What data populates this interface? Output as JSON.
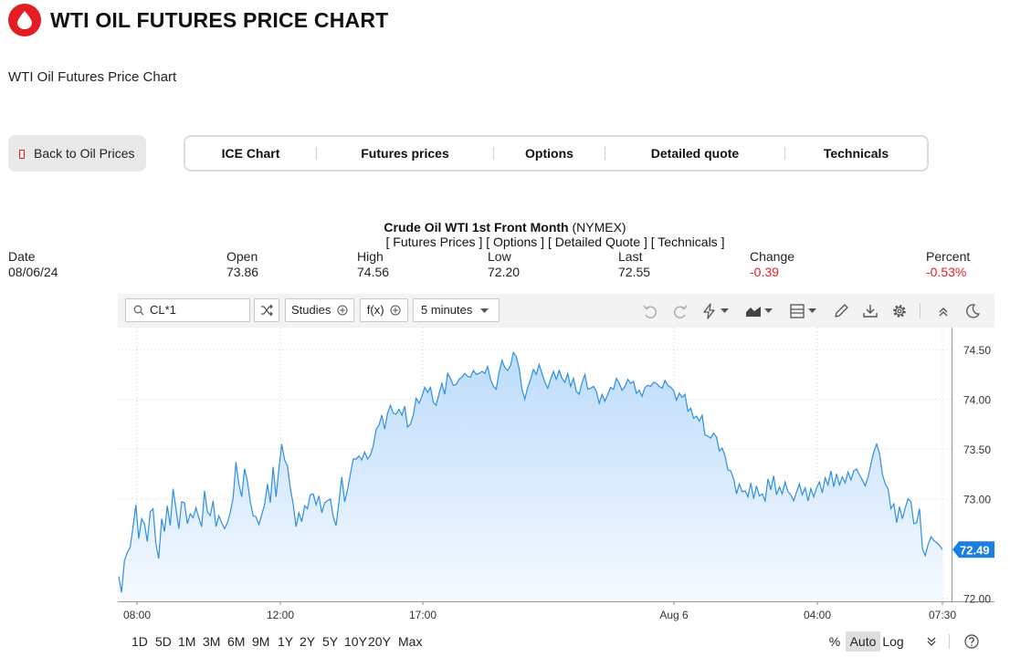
{
  "header": {
    "title": "WTI OIL FUTURES PRICE CHART",
    "subtitle": "WTI Oil Futures Price Chart",
    "brand_color": "#e31d24"
  },
  "back_button": {
    "label": "Back to Oil Prices"
  },
  "tabs": [
    {
      "label": "ICE Chart"
    },
    {
      "label": "Futures prices"
    },
    {
      "label": "Options"
    },
    {
      "label": "Detailed quote"
    },
    {
      "label": "Technicals"
    }
  ],
  "instrument": {
    "name": "Crude Oil WTI 1st Front Month",
    "exchange": "(NYMEX)",
    "links": [
      "[ Futures Prices ]",
      "[ Options ]",
      "[ Detailed Quote ]",
      "[ Technicals ]"
    ]
  },
  "quote": {
    "date_label": "Date",
    "date": "08/06/24",
    "open_label": "Open",
    "open": "73.86",
    "high_label": "High",
    "high": "74.56",
    "low_label": "Low",
    "low": "72.20",
    "last_label": "Last",
    "last": "72.55",
    "change_label": "Change",
    "change": "-0.39",
    "percent_label": "Percent",
    "percent": "-0.53%",
    "negative_color": "#e31d24"
  },
  "toolbar": {
    "symbol": "CL*1",
    "studies_label": "Studies",
    "fx_label": "f(x)",
    "interval_label": "5 minutes",
    "icons": [
      "search-icon",
      "shuffle-icon",
      "undo-icon",
      "redo-icon",
      "lightning-icon",
      "area-chart-icon",
      "layout-icon",
      "pencil-icon",
      "download-icon",
      "gear-icon",
      "collapse-icon",
      "moon-icon"
    ]
  },
  "chart_data": {
    "type": "area",
    "series": [
      {
        "color": "#2f8fe0"
      }
    ],
    "y_ticks": [
      "74.50",
      "74.00",
      "73.50",
      "73.00",
      "72.00"
    ],
    "y_tick_values": [
      74.5,
      74.0,
      73.5,
      73.0,
      72.0
    ],
    "ylim": [
      71.97,
      74.72
    ],
    "x_ticks": [
      "08:00",
      "12:00",
      "17:00",
      "Aug 6",
      "04:00",
      "07:30"
    ],
    "last_price": "72.49",
    "last_value": 72.49,
    "values": [
      72.22,
      72.06,
      72.38,
      72.46,
      72.51,
      72.72,
      72.94,
      72.6,
      72.8,
      72.75,
      72.57,
      72.87,
      72.9,
      72.55,
      72.4,
      72.8,
      72.67,
      72.93,
      72.73,
      73.1,
      72.91,
      72.7,
      72.97,
      72.96,
      72.75,
      72.85,
      72.81,
      72.91,
      72.81,
      72.72,
      73.08,
      72.87,
      72.83,
      72.98,
      72.72,
      72.83,
      72.76,
      72.7,
      72.76,
      72.86,
      73.01,
      73.37,
      73.15,
      73.02,
      73.3,
      73.18,
      72.97,
      72.83,
      72.82,
      72.74,
      72.84,
      72.94,
      73.15,
      72.96,
      73.32,
      73.02,
      73.3,
      73.55,
      73.39,
      73.33,
      73.11,
      72.95,
      72.72,
      72.86,
      72.77,
      72.93,
      72.9,
      73.04,
      73.05,
      72.94,
      73.03,
      72.86,
      72.96,
      72.98,
      73.0,
      72.82,
      72.73,
      72.97,
      73.22,
      72.97,
      73.09,
      73.25,
      73.4,
      73.4,
      73.43,
      73.39,
      73.47,
      73.4,
      73.44,
      73.53,
      73.7,
      73.74,
      73.84,
      73.7,
      73.86,
      73.94,
      73.86,
      73.85,
      73.9,
      73.84,
      73.93,
      73.72,
      73.75,
      73.84,
      74.01,
      73.96,
      74.03,
      74.12,
      74.07,
      74.12,
      73.97,
      73.94,
      74.06,
      74.16,
      74.05,
      74.26,
      74.21,
      74.14,
      74.15,
      74.2,
      74.22,
      74.26,
      74.23,
      74.22,
      74.29,
      74.25,
      74.26,
      74.28,
      74.26,
      74.33,
      74.2,
      74.13,
      74.1,
      74.27,
      74.39,
      74.32,
      74.29,
      74.34,
      74.47,
      74.43,
      74.31,
      74.1,
      74.0,
      74.12,
      74.2,
      74.3,
      74.25,
      74.35,
      74.26,
      74.17,
      74.11,
      74.2,
      74.28,
      74.2,
      74.29,
      74.21,
      74.17,
      74.26,
      74.13,
      74.21,
      74.08,
      74.05,
      74.17,
      74.25,
      74.1,
      74.11,
      74.13,
      74.08,
      73.96,
      74.05,
      73.98,
      74.05,
      74.12,
      74.1,
      74.21,
      74.16,
      74.09,
      74.13,
      74.2,
      74.16,
      74.18,
      74.06,
      74.09,
      74.03,
      74.12,
      74.14,
      74.13,
      74.17,
      74.16,
      74.13,
      74.11,
      74.19,
      74.14,
      74.12,
      74.09,
      73.99,
      74.06,
      74.02,
      74.05,
      73.88,
      73.91,
      73.81,
      73.83,
      73.78,
      73.84,
      73.64,
      73.63,
      73.61,
      73.66,
      73.62,
      73.48,
      73.51,
      73.43,
      73.29,
      73.28,
      73.2,
      73.05,
      73.15,
      73.07,
      73.08,
      73.02,
      73.16,
      73.0,
      73.13,
      73.03,
      73.05,
      72.98,
      73.2,
      73.09,
      73.23,
      73.04,
      73.12,
      73.05,
      73.17,
      73.07,
      73.04,
      72.98,
      73.07,
      73.15,
      73.04,
      73.11,
      72.98,
      73.1,
      73.02,
      73.11,
      73.17,
      73.06,
      73.21,
      73.14,
      73.28,
      73.12,
      73.25,
      73.14,
      73.22,
      73.16,
      73.27,
      73.19,
      73.28,
      73.3,
      73.24,
      73.19,
      73.13,
      73.22,
      73.35,
      73.47,
      73.55,
      73.46,
      73.25,
      73.15,
      73.1,
      72.9,
      72.95,
      72.76,
      72.92,
      72.8,
      72.91,
      73.0,
      72.97,
      72.75,
      72.76,
      72.9,
      72.5,
      72.43,
      72.54,
      72.62,
      72.58,
      72.56,
      72.53,
      72.49
    ]
  },
  "ranges": {
    "buttons": [
      "1D",
      "5D",
      "1M",
      "3M",
      "6M",
      "9M",
      "1Y",
      "2Y",
      "5Y",
      "10Y",
      "20Y",
      "Max"
    ],
    "percent_label": "%",
    "auto_label": "Auto",
    "log_label": "Log"
  }
}
